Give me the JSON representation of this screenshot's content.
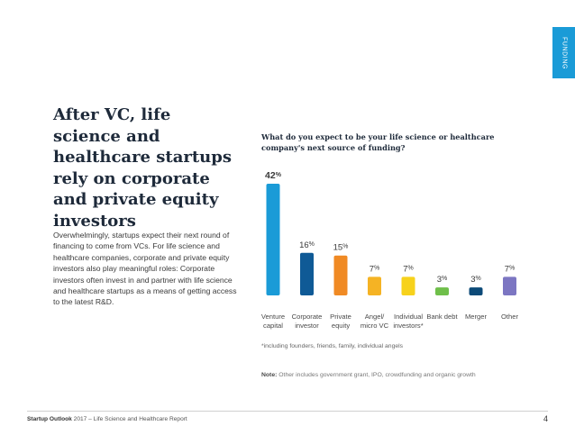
{
  "side_tab": {
    "label": "FUNDING"
  },
  "headline": "After VC, life science and healthcare startups rely on corporate and private equity investors",
  "body_text": "Overwhelmingly, startups expect their next round of financing to come from VCs. For life science and healthcare companies, corporate and private equity investors also play meaningful roles: Corporate investors often invest in and partner with life science and healthcare startups as a means of getting access to the latest R&D.",
  "chart_data": {
    "type": "bar",
    "title": "What do you expect to be your life science or healthcare company's next source of funding?",
    "categories": [
      [
        "Venture",
        "capital"
      ],
      [
        "Corporate",
        "investor"
      ],
      [
        "Private",
        "equity"
      ],
      [
        "Angel/",
        "micro VC"
      ],
      [
        "Individual",
        "investors*"
      ],
      [
        "Bank debt"
      ],
      [
        "Merger"
      ],
      [
        "Other"
      ]
    ],
    "values": [
      42,
      16,
      15,
      7,
      7,
      3,
      3,
      7
    ],
    "value_suffix": "%",
    "colors": [
      "#1a9bd7",
      "#0f5a96",
      "#f08a24",
      "#f5b324",
      "#f7d21c",
      "#6fbf4a",
      "#0c4a78",
      "#7c76c2"
    ],
    "ylim": [
      0,
      42
    ],
    "grid": false
  },
  "footnote": "*including founders, friends, family, individual angels",
  "note": {
    "label": "Note:",
    "text": "Other includes government grant, IPO, crowdfunding and organic growth"
  },
  "footer": {
    "brand": "Startup Outlook",
    "subtitle": "2017 – Life Science and Healthcare Report",
    "page": "4"
  }
}
